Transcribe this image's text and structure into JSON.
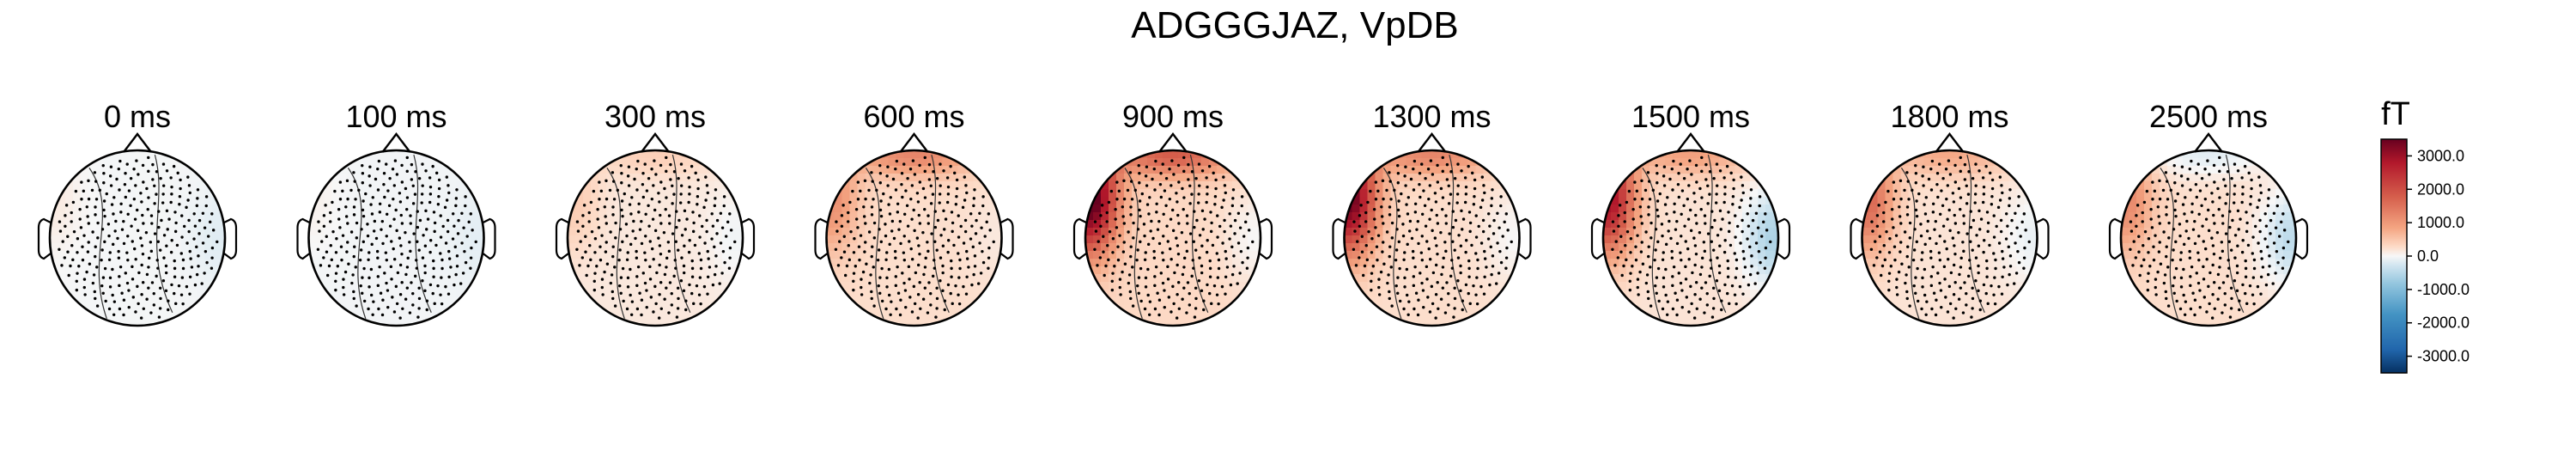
{
  "figure": {
    "title": "ADGGGJAZ, VpDB"
  },
  "chart_data": {
    "type": "heatmap",
    "title": "ADGGGJAZ, VpDB",
    "subtype": "topomap",
    "colormap": "RdBu_r",
    "panels": [
      {
        "label": "0 ms",
        "time_ms": 0,
        "left_peak_fT": 150,
        "right_peak_fT": -150,
        "front_peak_fT": 0,
        "background_fT": -20
      },
      {
        "label": "100 ms",
        "time_ms": 100,
        "left_peak_fT": 100,
        "right_peak_fT": -100,
        "front_peak_fT": 0,
        "background_fT": -40
      },
      {
        "label": "300 ms",
        "time_ms": 300,
        "left_peak_fT": 300,
        "right_peak_fT": -200,
        "front_peak_fT": 250,
        "background_fT": 150
      },
      {
        "label": "600 ms",
        "time_ms": 600,
        "left_peak_fT": 900,
        "right_peak_fT": -100,
        "front_peak_fT": 1000,
        "background_fT": 250
      },
      {
        "label": "900 ms",
        "time_ms": 900,
        "left_peak_fT": 3500,
        "right_peak_fT": -300,
        "front_peak_fT": 1500,
        "background_fT": 300
      },
      {
        "label": "1300 ms",
        "time_ms": 1300,
        "left_peak_fT": 3300,
        "right_peak_fT": -250,
        "front_peak_fT": 1000,
        "background_fT": 250
      },
      {
        "label": "1500 ms",
        "time_ms": 1500,
        "left_peak_fT": 2800,
        "right_peak_fT": -800,
        "front_peak_fT": 700,
        "background_fT": 200
      },
      {
        "label": "1800 ms",
        "time_ms": 1800,
        "left_peak_fT": 1500,
        "right_peak_fT": -300,
        "front_peak_fT": 600,
        "background_fT": 200
      },
      {
        "label": "2500 ms",
        "time_ms": 2500,
        "left_peak_fT": 1000,
        "right_peak_fT": -700,
        "front_peak_fT": -400,
        "background_fT": 250
      }
    ],
    "colorbar": {
      "label": "fT",
      "range": [
        -3500,
        3500
      ],
      "ticks": [
        3000,
        2000,
        1000,
        0,
        -1000,
        -2000,
        -3000
      ],
      "tick_labels": [
        "3000.0",
        "2000.0",
        "1000.0",
        "0.0",
        "-1000.0",
        "-2000.0",
        "-3000.0"
      ]
    }
  }
}
